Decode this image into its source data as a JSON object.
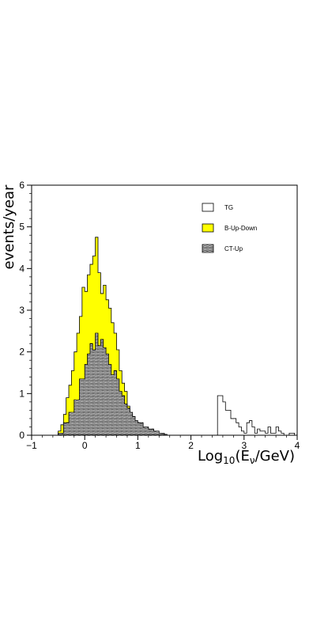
{
  "chart_data": {
    "type": "histogram",
    "xlabel_main": "Log",
    "xlabel_sub": "10",
    "xlabel_open": "(E",
    "xlabel_nu": "ν",
    "xlabel_close": "/GeV)",
    "ylabel": "events/year",
    "xlim": [
      -1,
      4
    ],
    "ylim": [
      0,
      6
    ],
    "xticks": [
      -1,
      0,
      1,
      2,
      3,
      4
    ],
    "yticks": [
      0,
      1,
      2,
      3,
      4,
      5,
      6
    ],
    "legend": [
      {
        "name": "TG",
        "style": "outline"
      },
      {
        "name": "B-Up-Down",
        "style": "fill",
        "color": "#ffff00"
      },
      {
        "name": "CT-Up",
        "style": "hatch"
      }
    ],
    "series": [
      {
        "name": "TG",
        "style": "outline",
        "x": [
          -0.5,
          2.5,
          2.55,
          2.6,
          2.65,
          2.7,
          2.75,
          2.8,
          2.85,
          2.9,
          2.95,
          3.0,
          3.05,
          3.1,
          3.15,
          3.2,
          3.25,
          3.3,
          3.35,
          3.4,
          3.45,
          3.5,
          3.55,
          3.6,
          3.65,
          3.7,
          3.75,
          3.8,
          3.85,
          3.9
        ],
        "y": [
          0,
          0.95,
          0.95,
          0.8,
          0.6,
          0.6,
          0.4,
          0.4,
          0.3,
          0.2,
          0.1,
          0.05,
          0.3,
          0.35,
          0.2,
          0.05,
          0.15,
          0.1,
          0.1,
          0.05,
          0.2,
          0.05,
          0.05,
          0.2,
          0.1,
          0.05,
          0.0,
          0.0,
          0.05,
          0.05
        ]
      },
      {
        "name": "B-Up-Down",
        "style": "fill",
        "x": [
          -0.5,
          -0.45,
          -0.4,
          -0.35,
          -0.3,
          -0.25,
          -0.2,
          -0.15,
          -0.1,
          -0.05,
          0.0,
          0.05,
          0.1,
          0.15,
          0.2,
          0.25,
          0.3,
          0.35,
          0.4,
          0.45,
          0.5,
          0.55,
          0.6,
          0.65,
          0.7,
          0.75,
          0.8,
          0.85,
          0.9,
          0.95,
          1.0,
          1.05,
          1.1,
          1.15,
          1.2,
          1.25,
          1.3,
          1.35,
          1.4,
          1.45,
          1.5
        ],
        "y": [
          0.1,
          0.25,
          0.5,
          0.9,
          1.2,
          1.55,
          2.0,
          2.45,
          2.85,
          3.55,
          3.45,
          3.85,
          4.1,
          4.3,
          4.75,
          3.9,
          3.4,
          3.6,
          3.25,
          3.05,
          2.7,
          2.45,
          2.05,
          1.55,
          1.25,
          1.05,
          0.7,
          0.5,
          0.35,
          0.25,
          0.2,
          0.15,
          0.12,
          0.1,
          0.08,
          0.06,
          0.05,
          0.04,
          0.03,
          0.02,
          0.0
        ]
      },
      {
        "name": "CT-Up",
        "style": "hatch",
        "x": [
          -0.5,
          -0.4,
          -0.3,
          -0.2,
          -0.1,
          0.0,
          0.05,
          0.1,
          0.15,
          0.2,
          0.25,
          0.3,
          0.35,
          0.4,
          0.45,
          0.5,
          0.55,
          0.6,
          0.65,
          0.7,
          0.75,
          0.8,
          0.85,
          0.9,
          0.95,
          1.0,
          1.1,
          1.2,
          1.3,
          1.4,
          1.5
        ],
        "y": [
          0.05,
          0.3,
          0.55,
          0.85,
          1.35,
          1.7,
          1.95,
          2.2,
          2.05,
          2.45,
          2.15,
          2.3,
          2.1,
          1.95,
          1.7,
          1.45,
          1.55,
          1.35,
          1.05,
          0.95,
          0.75,
          0.65,
          0.55,
          0.45,
          0.35,
          0.3,
          0.2,
          0.15,
          0.1,
          0.05,
          0.02
        ]
      }
    ]
  }
}
